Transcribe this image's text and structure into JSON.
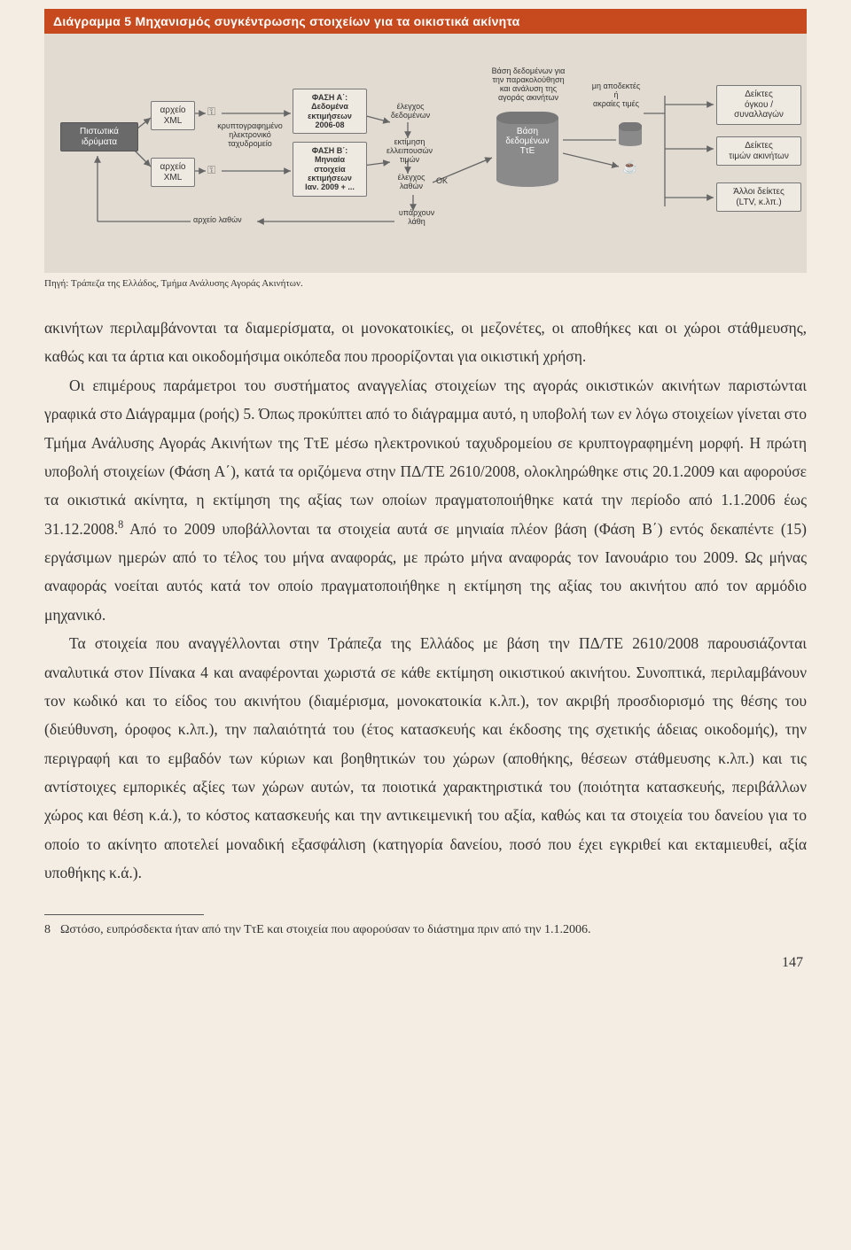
{
  "figure": {
    "title": "Διάγραμμα 5  Μηχανισμός συγκέντρωσης στοιχείων για τα οικιστικά ακίνητα",
    "source": "Πηγή: Τράπεζα της Ελλάδος, Τμήμα Ανάλυσης Αγοράς Ακινήτων.",
    "colors": {
      "title_bar": "#c74a1e",
      "panel_bg": "#e2dbd1",
      "page_bg": "#f4ede3",
      "box_dark": "#6a6a6a",
      "box_light": "#efeae1",
      "stroke": "#666666"
    },
    "nodes": {
      "institutions": "Πιστωτικά\nιδρύματα",
      "xml1": "αρχείο\nXML",
      "xml2": "αρχείο\nXML",
      "encrypted": "κρυπτογραφημένο\nηλεκτρονικό\nταχυδρομείο",
      "phaseA": "ΦΑΣΗ Α΄:\nΔεδομένα\nεκτιμήσεων\n2006-08",
      "phaseB": "ΦΑΣΗ Β΄:\nΜηνιαία\nστοιχεία\nεκτιμήσεων\nΙαν. 2009 + ...",
      "check_data": "έλεγχος\nδεδομένων",
      "estimate": "εκτίμηση\nελλειπουσών\nτιμών",
      "check_err": "έλεγχος\nλαθών",
      "ok": "ΟΚ",
      "have_err": "υπάρχουν\nλάθη",
      "err_file": "αρχείο λαθών",
      "db_main_top": "Βάση δεδομένων για\nτην παρακολούθηση\nκαι ανάλυση της\nαγοράς ακινήτων",
      "db_main_body": "Βάση\nδεδομένων\nΤτΕ",
      "reject": "μη αποδεκτές\nή\nακραίες τιμές",
      "cup": "☕",
      "out1": "Δείκτες\nόγκου /\nσυναλλαγών",
      "out2": "Δείκτες\nτιμών ακινήτων",
      "out3": "Άλλοι δείκτες\n(LTV, κ.λπ.)"
    }
  },
  "paragraphs": {
    "p1": "ακινήτων περιλαμβάνονται τα διαμερίσματα, οι μονοκατοικίες, οι μεζονέτες, οι αποθήκες και οι χώροι στάθμευσης, καθώς και τα άρτια και οικοδομήσιμα οικόπεδα που προορίζονται για οικιστική χρήση.",
    "p2a": "Οι επιμέρους παράμετροι του συστήματος αναγγελίας στοιχείων της αγοράς οικιστικών ακινήτων παριστώνται γραφικά στο Διάγραμμα (ροής) 5. Όπως προκύπτει από το διάγραμμα αυτό, η υποβολή των εν λόγω στοιχείων γίνεται στο Τμήμα Ανάλυσης Αγοράς Ακινήτων της ΤτΕ μέσω ηλεκτρονικού ταχυδρομείου σε κρυπτογραφημένη μορφή. Η πρώτη υποβολή στοιχείων (Φάση Α΄), κατά τα οριζόμενα στην ΠΔ/ΤΕ 2610/2008, ολοκληρώθηκε στις 20.1.2009 και αφορούσε τα οικιστικά ακίνητα, η εκτίμηση της αξίας των οποίων πραγματοποιήθηκε κατά την περίοδο από 1.1.2006 έως 31.12.2008.",
    "p2b": " Από το 2009 υποβάλλονται τα στοιχεία αυτά σε μηνιαία πλέον βάση (Φάση Β΄) εντός δεκαπέντε (15) εργάσιμων ημερών από το τέλος του μήνα αναφοράς, με πρώτο μήνα αναφοράς τον Ιανουάριο του 2009. Ως μήνας αναφοράς νοείται αυτός κατά τον οποίο πραγματοποιήθηκε η εκτίμηση της αξίας του ακινήτου από τον αρμόδιο μηχανικό.",
    "p3": "Τα στοιχεία που αναγγέλλονται στην Τράπεζα της Ελλάδος με βάση την ΠΔ/ΤΕ 2610/2008 παρουσιάζονται αναλυτικά στον Πίνακα 4 και αναφέρονται χωριστά σε κάθε εκτίμηση οικιστικού ακινήτου. Συνοπτικά, περιλαμβάνουν τον κωδικό και το είδος του ακινήτου (διαμέρισμα, μονοκατοικία κ.λπ.), τον ακριβή προσδιορισμό της θέσης του (διεύθυνση, όροφος κ.λπ.), την παλαιότητά του (έτος κατασκευής και έκδοσης της σχετικής άδειας οικοδομής), την περιγραφή και το εμβαδόν των κύριων και βοηθητικών του χώρων (αποθήκης, θέσεων στάθμευσης κ.λπ.) και τις αντίστοιχες εμπορικές αξίες των χώρων αυτών, τα ποιοτικά χαρακτηριστικά του (ποιότητα κατασκευής, περιβάλλων χώρος και θέση κ.ά.), το κόστος κατασκευής και την αντικειμενική του αξία, καθώς και τα στοιχεία του δανείου για το οποίο το ακίνητο αποτελεί μοναδική εξασφάλιση (κατηγορία δανείου, ποσό που έχει εγκριθεί και εκταμιευθεί, αξία υποθήκης κ.ά.).",
    "fn_marker": "8"
  },
  "footnote": {
    "num": "8",
    "text": "Ωστόσο, ευπρόσδεκτα ήταν από την ΤτΕ και στοιχεία που αφορούσαν το διάστημα πριν από την 1.1.2006."
  },
  "page_number": "147"
}
